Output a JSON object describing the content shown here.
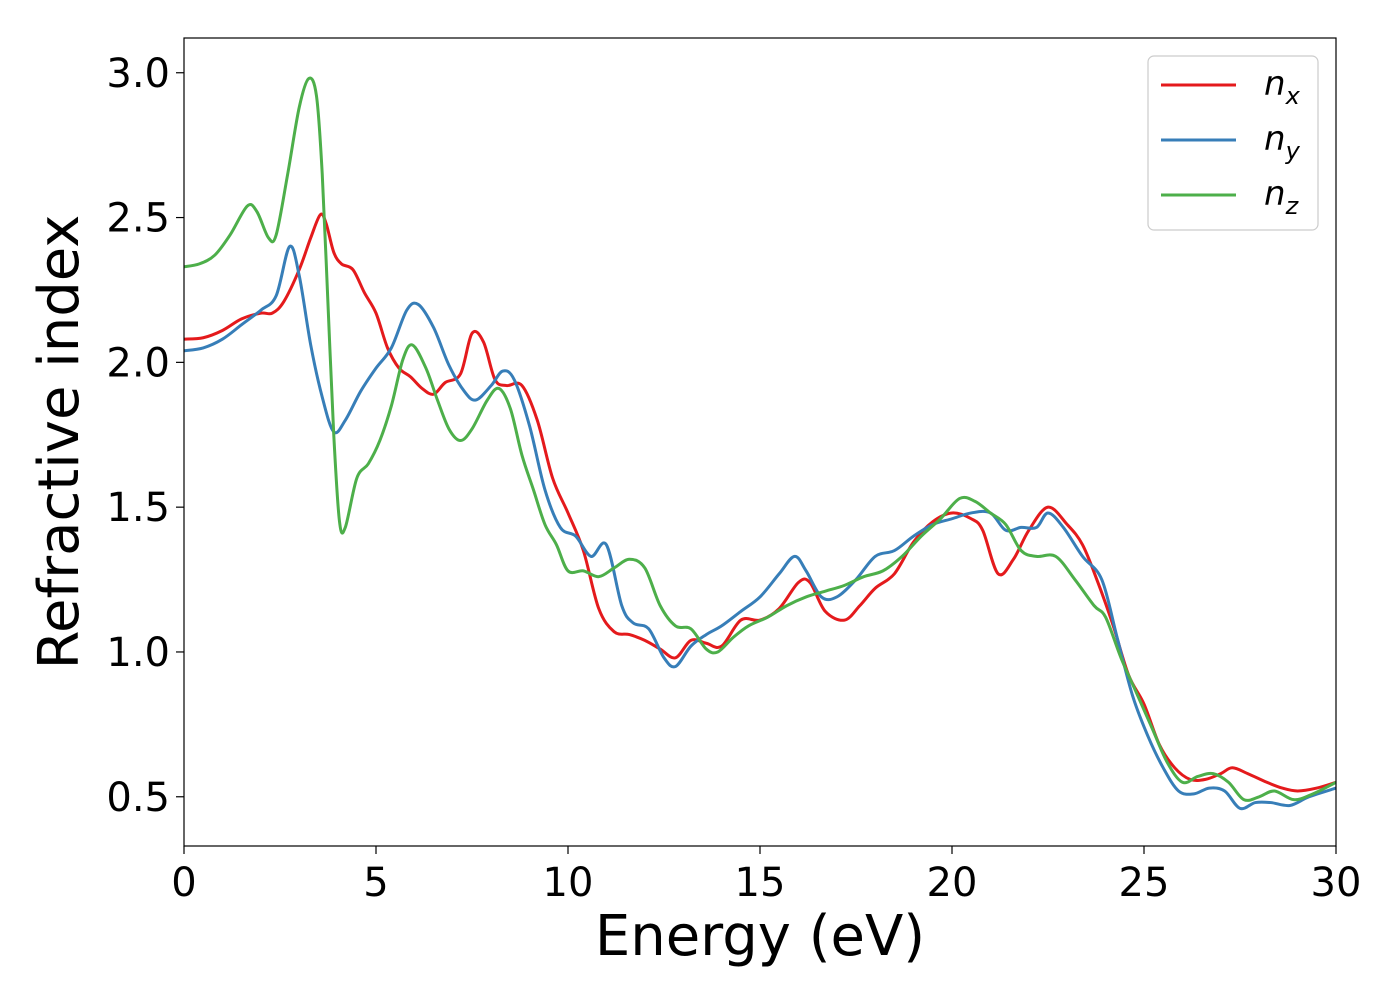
{
  "chart_data": {
    "type": "line",
    "title": "",
    "xlabel": "Energy (eV)",
    "ylabel": "Refractive index",
    "xlim": [
      0,
      30
    ],
    "ylim": [
      0.33,
      3.12
    ],
    "xticks": [
      0,
      5,
      10,
      15,
      20,
      25,
      30
    ],
    "xtick_labels": [
      "0",
      "5",
      "10",
      "15",
      "20",
      "25",
      "30"
    ],
    "yticks": [
      0.5,
      1.0,
      1.5,
      2.0,
      2.5,
      3.0
    ],
    "ytick_labels": [
      "0.5",
      "1.0",
      "1.5",
      "2.0",
      "2.5",
      "3.0"
    ],
    "grid": false,
    "legend_position": "top-right",
    "series": [
      {
        "name": "n_x",
        "label_main": "n",
        "label_sub": "x",
        "color": "#e41a1c",
        "points": [
          [
            0,
            2.08
          ],
          [
            0.5,
            2.085
          ],
          [
            1.0,
            2.11
          ],
          [
            1.5,
            2.15
          ],
          [
            2.0,
            2.17
          ],
          [
            2.3,
            2.17
          ],
          [
            2.6,
            2.21
          ],
          [
            3.0,
            2.32
          ],
          [
            3.3,
            2.43
          ],
          [
            3.55,
            2.51
          ],
          [
            3.7,
            2.48
          ],
          [
            3.9,
            2.38
          ],
          [
            4.1,
            2.34
          ],
          [
            4.4,
            2.32
          ],
          [
            4.7,
            2.24
          ],
          [
            5.0,
            2.17
          ],
          [
            5.3,
            2.05
          ],
          [
            5.6,
            1.98
          ],
          [
            5.9,
            1.95
          ],
          [
            6.2,
            1.91
          ],
          [
            6.5,
            1.89
          ],
          [
            6.8,
            1.93
          ],
          [
            7.2,
            1.96
          ],
          [
            7.5,
            2.1
          ],
          [
            7.8,
            2.07
          ],
          [
            8.1,
            1.94
          ],
          [
            8.4,
            1.92
          ],
          [
            8.8,
            1.92
          ],
          [
            9.2,
            1.8
          ],
          [
            9.6,
            1.6
          ],
          [
            10.0,
            1.48
          ],
          [
            10.4,
            1.35
          ],
          [
            10.8,
            1.15
          ],
          [
            11.2,
            1.07
          ],
          [
            11.6,
            1.06
          ],
          [
            12.0,
            1.04
          ],
          [
            12.4,
            1.01
          ],
          [
            12.8,
            0.98
          ],
          [
            13.2,
            1.04
          ],
          [
            13.6,
            1.03
          ],
          [
            14.0,
            1.02
          ],
          [
            14.5,
            1.11
          ],
          [
            15.0,
            1.11
          ],
          [
            15.5,
            1.15
          ],
          [
            16.0,
            1.24
          ],
          [
            16.3,
            1.24
          ],
          [
            16.7,
            1.14
          ],
          [
            17.2,
            1.11
          ],
          [
            17.6,
            1.16
          ],
          [
            18.0,
            1.22
          ],
          [
            18.5,
            1.27
          ],
          [
            19.0,
            1.38
          ],
          [
            19.5,
            1.45
          ],
          [
            20.0,
            1.48
          ],
          [
            20.5,
            1.46
          ],
          [
            20.8,
            1.42
          ],
          [
            21.2,
            1.27
          ],
          [
            21.6,
            1.32
          ],
          [
            22.0,
            1.42
          ],
          [
            22.5,
            1.5
          ],
          [
            23.0,
            1.44
          ],
          [
            23.4,
            1.37
          ],
          [
            23.8,
            1.24
          ],
          [
            24.2,
            1.09
          ],
          [
            24.6,
            0.92
          ],
          [
            25.0,
            0.82
          ],
          [
            25.4,
            0.68
          ],
          [
            25.8,
            0.6
          ],
          [
            26.2,
            0.56
          ],
          [
            26.6,
            0.56
          ],
          [
            27.0,
            0.58
          ],
          [
            27.3,
            0.6
          ],
          [
            27.7,
            0.58
          ],
          [
            28.2,
            0.55
          ],
          [
            28.6,
            0.53
          ],
          [
            29.0,
            0.52
          ],
          [
            29.5,
            0.53
          ],
          [
            30.0,
            0.55
          ]
        ]
      },
      {
        "name": "n_y",
        "label_main": "n",
        "label_sub": "y",
        "color": "#377eb8",
        "points": [
          [
            0,
            2.04
          ],
          [
            0.5,
            2.05
          ],
          [
            1.0,
            2.08
          ],
          [
            1.5,
            2.13
          ],
          [
            2.0,
            2.18
          ],
          [
            2.4,
            2.23
          ],
          [
            2.75,
            2.4
          ],
          [
            3.0,
            2.3
          ],
          [
            3.3,
            2.06
          ],
          [
            3.6,
            1.88
          ],
          [
            3.9,
            1.76
          ],
          [
            4.2,
            1.8
          ],
          [
            4.6,
            1.9
          ],
          [
            5.0,
            1.98
          ],
          [
            5.4,
            2.05
          ],
          [
            5.8,
            2.18
          ],
          [
            6.1,
            2.2
          ],
          [
            6.5,
            2.12
          ],
          [
            6.9,
            1.99
          ],
          [
            7.3,
            1.9
          ],
          [
            7.6,
            1.87
          ],
          [
            8.0,
            1.92
          ],
          [
            8.3,
            1.97
          ],
          [
            8.6,
            1.94
          ],
          [
            9.0,
            1.78
          ],
          [
            9.4,
            1.56
          ],
          [
            9.8,
            1.43
          ],
          [
            10.2,
            1.4
          ],
          [
            10.6,
            1.33
          ],
          [
            11.0,
            1.37
          ],
          [
            11.4,
            1.16
          ],
          [
            11.7,
            1.1
          ],
          [
            12.1,
            1.08
          ],
          [
            12.5,
            0.98
          ],
          [
            12.8,
            0.95
          ],
          [
            13.2,
            1.02
          ],
          [
            13.6,
            1.06
          ],
          [
            14.0,
            1.09
          ],
          [
            14.5,
            1.14
          ],
          [
            15.0,
            1.19
          ],
          [
            15.5,
            1.27
          ],
          [
            15.9,
            1.33
          ],
          [
            16.2,
            1.28
          ],
          [
            16.6,
            1.19
          ],
          [
            17.0,
            1.19
          ],
          [
            17.5,
            1.25
          ],
          [
            18.0,
            1.33
          ],
          [
            18.5,
            1.35
          ],
          [
            19.0,
            1.4
          ],
          [
            19.5,
            1.44
          ],
          [
            20.0,
            1.46
          ],
          [
            20.5,
            1.48
          ],
          [
            21.0,
            1.48
          ],
          [
            21.4,
            1.42
          ],
          [
            21.8,
            1.43
          ],
          [
            22.2,
            1.43
          ],
          [
            22.5,
            1.48
          ],
          [
            22.9,
            1.43
          ],
          [
            23.4,
            1.33
          ],
          [
            23.9,
            1.25
          ],
          [
            24.3,
            1.05
          ],
          [
            24.7,
            0.85
          ],
          [
            25.1,
            0.71
          ],
          [
            25.5,
            0.6
          ],
          [
            25.9,
            0.52
          ],
          [
            26.3,
            0.51
          ],
          [
            26.7,
            0.53
          ],
          [
            27.1,
            0.52
          ],
          [
            27.5,
            0.46
          ],
          [
            27.9,
            0.48
          ],
          [
            28.3,
            0.48
          ],
          [
            28.8,
            0.47
          ],
          [
            29.3,
            0.5
          ],
          [
            30.0,
            0.53
          ]
        ]
      },
      {
        "name": "n_z",
        "label_main": "n",
        "label_sub": "z",
        "color": "#4daf4a",
        "points": [
          [
            0,
            2.33
          ],
          [
            0.4,
            2.34
          ],
          [
            0.8,
            2.37
          ],
          [
            1.2,
            2.44
          ],
          [
            1.65,
            2.54
          ],
          [
            1.9,
            2.52
          ],
          [
            2.2,
            2.43
          ],
          [
            2.4,
            2.44
          ],
          [
            2.7,
            2.65
          ],
          [
            3.0,
            2.88
          ],
          [
            3.25,
            2.98
          ],
          [
            3.45,
            2.92
          ],
          [
            3.6,
            2.65
          ],
          [
            3.75,
            2.2
          ],
          [
            3.9,
            1.75
          ],
          [
            4.05,
            1.45
          ],
          [
            4.2,
            1.43
          ],
          [
            4.5,
            1.6
          ],
          [
            4.8,
            1.65
          ],
          [
            5.1,
            1.73
          ],
          [
            5.4,
            1.85
          ],
          [
            5.7,
            2.01
          ],
          [
            5.95,
            2.06
          ],
          [
            6.3,
            1.98
          ],
          [
            6.6,
            1.87
          ],
          [
            6.9,
            1.77
          ],
          [
            7.2,
            1.73
          ],
          [
            7.5,
            1.77
          ],
          [
            7.9,
            1.87
          ],
          [
            8.2,
            1.91
          ],
          [
            8.5,
            1.84
          ],
          [
            8.8,
            1.68
          ],
          [
            9.1,
            1.56
          ],
          [
            9.4,
            1.44
          ],
          [
            9.7,
            1.37
          ],
          [
            10.0,
            1.28
          ],
          [
            10.4,
            1.28
          ],
          [
            10.8,
            1.26
          ],
          [
            11.2,
            1.29
          ],
          [
            11.6,
            1.32
          ],
          [
            12.0,
            1.29
          ],
          [
            12.4,
            1.16
          ],
          [
            12.8,
            1.09
          ],
          [
            13.2,
            1.08
          ],
          [
            13.6,
            1.01
          ],
          [
            13.9,
            1.0
          ],
          [
            14.3,
            1.05
          ],
          [
            14.7,
            1.09
          ],
          [
            15.2,
            1.12
          ],
          [
            15.7,
            1.16
          ],
          [
            16.2,
            1.19
          ],
          [
            16.7,
            1.21
          ],
          [
            17.2,
            1.23
          ],
          [
            17.7,
            1.26
          ],
          [
            18.2,
            1.28
          ],
          [
            18.7,
            1.33
          ],
          [
            19.2,
            1.4
          ],
          [
            19.7,
            1.46
          ],
          [
            20.2,
            1.53
          ],
          [
            20.6,
            1.52
          ],
          [
            21.0,
            1.48
          ],
          [
            21.4,
            1.44
          ],
          [
            21.8,
            1.35
          ],
          [
            22.2,
            1.33
          ],
          [
            22.7,
            1.33
          ],
          [
            23.2,
            1.25
          ],
          [
            23.7,
            1.16
          ],
          [
            24.0,
            1.12
          ],
          [
            24.4,
            0.98
          ],
          [
            24.8,
            0.86
          ],
          [
            25.2,
            0.74
          ],
          [
            25.6,
            0.62
          ],
          [
            26.0,
            0.55
          ],
          [
            26.4,
            0.57
          ],
          [
            26.8,
            0.58
          ],
          [
            27.2,
            0.55
          ],
          [
            27.6,
            0.49
          ],
          [
            28.0,
            0.5
          ],
          [
            28.4,
            0.52
          ],
          [
            28.9,
            0.49
          ],
          [
            29.4,
            0.51
          ],
          [
            30.0,
            0.55
          ]
        ]
      }
    ]
  }
}
